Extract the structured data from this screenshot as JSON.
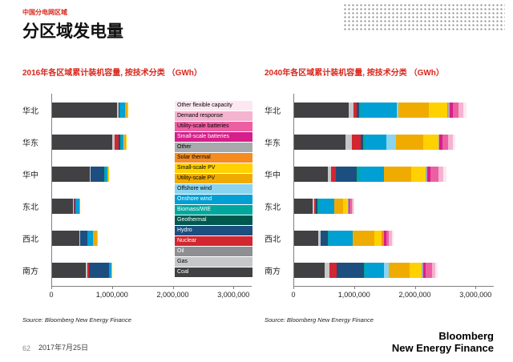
{
  "header": {
    "kicker": "中国分电网区域",
    "title": "分区域发电量"
  },
  "legend": {
    "items": [
      {
        "label": "Other flexible capacity",
        "color": "#fde8f1",
        "text": "#000000",
        "pattern": "pink-dots"
      },
      {
        "label": "Demand response",
        "color": "#f4b3cf",
        "text": "#000000"
      },
      {
        "label": "Utility-scale batteries",
        "color": "#ec5fa1",
        "text": "#000000"
      },
      {
        "label": "Small-scale batteries",
        "color": "#d61f8a",
        "text": "#ffffff",
        "pattern": "white-dots"
      },
      {
        "label": "Other",
        "color": "#a7a9ac",
        "text": "#000000"
      },
      {
        "label": "Solar thermal",
        "color": "#f68b1f",
        "text": "#000000"
      },
      {
        "label": "Small-scale PV",
        "color": "#ffd100",
        "text": "#000000"
      },
      {
        "label": "Utility-scale PV",
        "color": "#f0ab00",
        "text": "#000000"
      },
      {
        "label": "Offshore wind",
        "color": "#8ad4f0",
        "text": "#000000"
      },
      {
        "label": "Onshore wind",
        "color": "#009fd4",
        "text": "#ffffff"
      },
      {
        "label": "Biomass/WtE",
        "color": "#00a79d",
        "text": "#ffffff"
      },
      {
        "label": "Geothermal",
        "color": "#00594f",
        "text": "#ffffff"
      },
      {
        "label": "Hydro",
        "color": "#1c4e80",
        "text": "#ffffff"
      },
      {
        "label": "Nuclear",
        "color": "#d22630",
        "text": "#ffffff"
      },
      {
        "label": "Oil",
        "color": "#8d8f92",
        "text": "#ffffff"
      },
      {
        "label": "Gas",
        "color": "#c6c7c9",
        "text": "#000000"
      },
      {
        "label": "Coal",
        "color": "#414042",
        "text": "#ffffff"
      }
    ]
  },
  "chart_data": [
    {
      "type": "bar",
      "orientation": "horizontal-stacked",
      "title": "2016年各区域累计装机容量, 按技术分类 （GWh）",
      "source": "Source: Bloomberg New Energy Finance",
      "unit": "GWh",
      "categories": [
        "华北",
        "华东",
        "华中",
        "东北",
        "西北",
        "南方"
      ],
      "x_ticks": [
        0,
        1000000,
        2000000,
        3000000
      ],
      "x_tick_labels": [
        "0",
        "1,000,000",
        "2,000,000",
        "3,000,000"
      ],
      "x_max": 3300000,
      "series": [
        {
          "name": "Coal",
          "color": "#414042",
          "values": [
            1080000,
            1000000,
            620000,
            350000,
            450000,
            550000
          ]
        },
        {
          "name": "Gas",
          "color": "#c6c7c9",
          "values": [
            20000,
            40000,
            10000,
            10000,
            10000,
            30000
          ]
        },
        {
          "name": "Oil",
          "color": "#8d8f92",
          "values": [
            0,
            0,
            0,
            0,
            0,
            0
          ]
        },
        {
          "name": "Nuclear",
          "color": "#d22630",
          "values": [
            0,
            60000,
            0,
            10000,
            0,
            30000
          ]
        },
        {
          "name": "Hydro",
          "color": "#1c4e80",
          "values": [
            15000,
            30000,
            230000,
            15000,
            120000,
            330000
          ]
        },
        {
          "name": "Geothermal",
          "color": "#00594f",
          "values": [
            0,
            0,
            0,
            0,
            0,
            0
          ]
        },
        {
          "name": "Biomass/WtE",
          "color": "#00a79d",
          "values": [
            10000,
            15000,
            10000,
            5000,
            0,
            5000
          ]
        },
        {
          "name": "Onshore wind",
          "color": "#009fd4",
          "values": [
            80000,
            40000,
            40000,
            60000,
            100000,
            30000
          ]
        },
        {
          "name": "Offshore wind",
          "color": "#8ad4f0",
          "values": [
            0,
            5000,
            0,
            0,
            0,
            0
          ]
        },
        {
          "name": "Utility-scale PV",
          "color": "#f0ab00",
          "values": [
            40000,
            30000,
            20000,
            10000,
            60000,
            10000
          ]
        },
        {
          "name": "Small-scale PV",
          "color": "#ffd100",
          "values": [
            5000,
            10000,
            5000,
            0,
            5000,
            5000
          ]
        },
        {
          "name": "Solar thermal",
          "color": "#f68b1f",
          "values": [
            0,
            0,
            0,
            0,
            0,
            0
          ]
        },
        {
          "name": "Other",
          "color": "#a7a9ac",
          "values": [
            0,
            0,
            0,
            0,
            0,
            0
          ]
        },
        {
          "name": "Small-scale batteries",
          "color": "#d61f8a",
          "pattern": "white-dots",
          "values": [
            0,
            0,
            0,
            0,
            0,
            0
          ]
        },
        {
          "name": "Utility-scale batteries",
          "color": "#ec5fa1",
          "values": [
            0,
            0,
            0,
            0,
            0,
            0
          ]
        },
        {
          "name": "Demand response",
          "color": "#f4b3cf",
          "values": [
            0,
            0,
            0,
            0,
            0,
            0
          ]
        },
        {
          "name": "Other flexible capacity",
          "color": "#fde8f1",
          "pattern": "pink-dots",
          "values": [
            0,
            0,
            0,
            0,
            0,
            0
          ]
        }
      ]
    },
    {
      "type": "bar",
      "orientation": "horizontal-stacked",
      "title": "2040年各区域累计装机容量, 按技术分类 （GWh）",
      "source": "Source: Bloomberg New Energy Finance",
      "unit": "GWh",
      "categories": [
        "华北",
        "华东",
        "华中",
        "东北",
        "西北",
        "南方"
      ],
      "x_ticks": [
        0,
        1000000,
        2000000,
        3000000
      ],
      "x_tick_labels": [
        "0",
        "1,000,000",
        "2,000,000",
        "3,000,000"
      ],
      "x_max": 3300000,
      "series": [
        {
          "name": "Coal",
          "color": "#414042",
          "values": [
            900000,
            850000,
            550000,
            300000,
            400000,
            500000
          ]
        },
        {
          "name": "Gas",
          "color": "#c6c7c9",
          "values": [
            80000,
            100000,
            60000,
            30000,
            40000,
            80000
          ]
        },
        {
          "name": "Oil",
          "color": "#8d8f92",
          "values": [
            0,
            0,
            0,
            0,
            0,
            0
          ]
        },
        {
          "name": "Nuclear",
          "color": "#d22630",
          "values": [
            60000,
            150000,
            80000,
            30000,
            0,
            120000
          ]
        },
        {
          "name": "Hydro",
          "color": "#1c4e80",
          "values": [
            30000,
            40000,
            350000,
            30000,
            120000,
            450000
          ]
        },
        {
          "name": "Geothermal",
          "color": "#00594f",
          "values": [
            0,
            0,
            0,
            0,
            0,
            0
          ]
        },
        {
          "name": "Biomass/WtE",
          "color": "#00a79d",
          "values": [
            30000,
            40000,
            40000,
            20000,
            10000,
            30000
          ]
        },
        {
          "name": "Onshore wind",
          "color": "#009fd4",
          "values": [
            600000,
            350000,
            400000,
            250000,
            400000,
            300000
          ]
        },
        {
          "name": "Offshore wind",
          "color": "#8ad4f0",
          "values": [
            30000,
            150000,
            0,
            0,
            0,
            80000
          ]
        },
        {
          "name": "Utility-scale PV",
          "color": "#f0ab00",
          "values": [
            500000,
            450000,
            450000,
            150000,
            350000,
            350000
          ]
        },
        {
          "name": "Small-scale PV",
          "color": "#ffd100",
          "values": [
            300000,
            250000,
            250000,
            80000,
            120000,
            200000
          ]
        },
        {
          "name": "Solar thermal",
          "color": "#f68b1f",
          "values": [
            20000,
            0,
            0,
            0,
            40000,
            0
          ]
        },
        {
          "name": "Other",
          "color": "#a7a9ac",
          "values": [
            20000,
            20000,
            20000,
            10000,
            10000,
            20000
          ]
        },
        {
          "name": "Small-scale batteries",
          "color": "#d61f8a",
          "pattern": "white-dots",
          "values": [
            50000,
            50000,
            60000,
            20000,
            30000,
            50000
          ]
        },
        {
          "name": "Utility-scale batteries",
          "color": "#ec5fa1",
          "values": [
            100000,
            100000,
            120000,
            30000,
            50000,
            100000
          ]
        },
        {
          "name": "Demand response",
          "color": "#f4b3cf",
          "values": [
            80000,
            80000,
            90000,
            30000,
            50000,
            60000
          ]
        },
        {
          "name": "Other flexible capacity",
          "color": "#fde8f1",
          "pattern": "pink-dots",
          "values": [
            50000,
            40000,
            50000,
            10000,
            20000,
            30000
          ]
        }
      ]
    }
  ],
  "footer": {
    "page_number": "62",
    "date": "2017年7月25日",
    "logo_line1": "Bloomberg",
    "logo_line2": "New Energy Finance"
  }
}
